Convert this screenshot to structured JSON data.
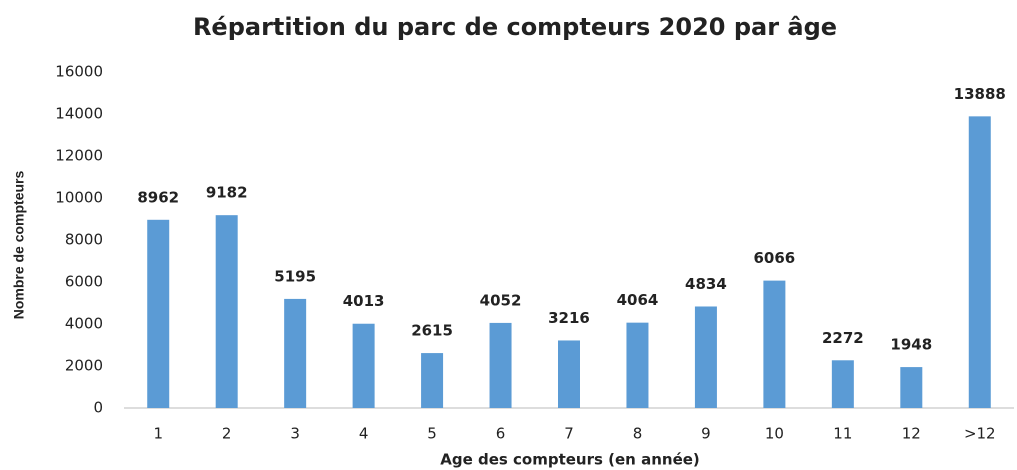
{
  "chart_data": {
    "type": "bar",
    "title": "Répartition du parc de compteurs 2020 par âge",
    "x_label": "Age des compteurs (en année)",
    "y_label": "Nombre de compteurs",
    "categories": [
      "1",
      "2",
      "3",
      "4",
      "5",
      "6",
      "7",
      "8",
      "9",
      "10",
      "11",
      "12",
      ">12"
    ],
    "values": [
      8962,
      9182,
      5195,
      4013,
      2615,
      4052,
      3216,
      4064,
      4834,
      6066,
      2272,
      1948,
      13888
    ],
    "color": "#5b9bd5",
    "ylim": [
      0,
      16000
    ],
    "yticks": [
      0,
      2000,
      4000,
      6000,
      8000,
      10000,
      12000,
      14000,
      16000
    ],
    "grid": false
  }
}
